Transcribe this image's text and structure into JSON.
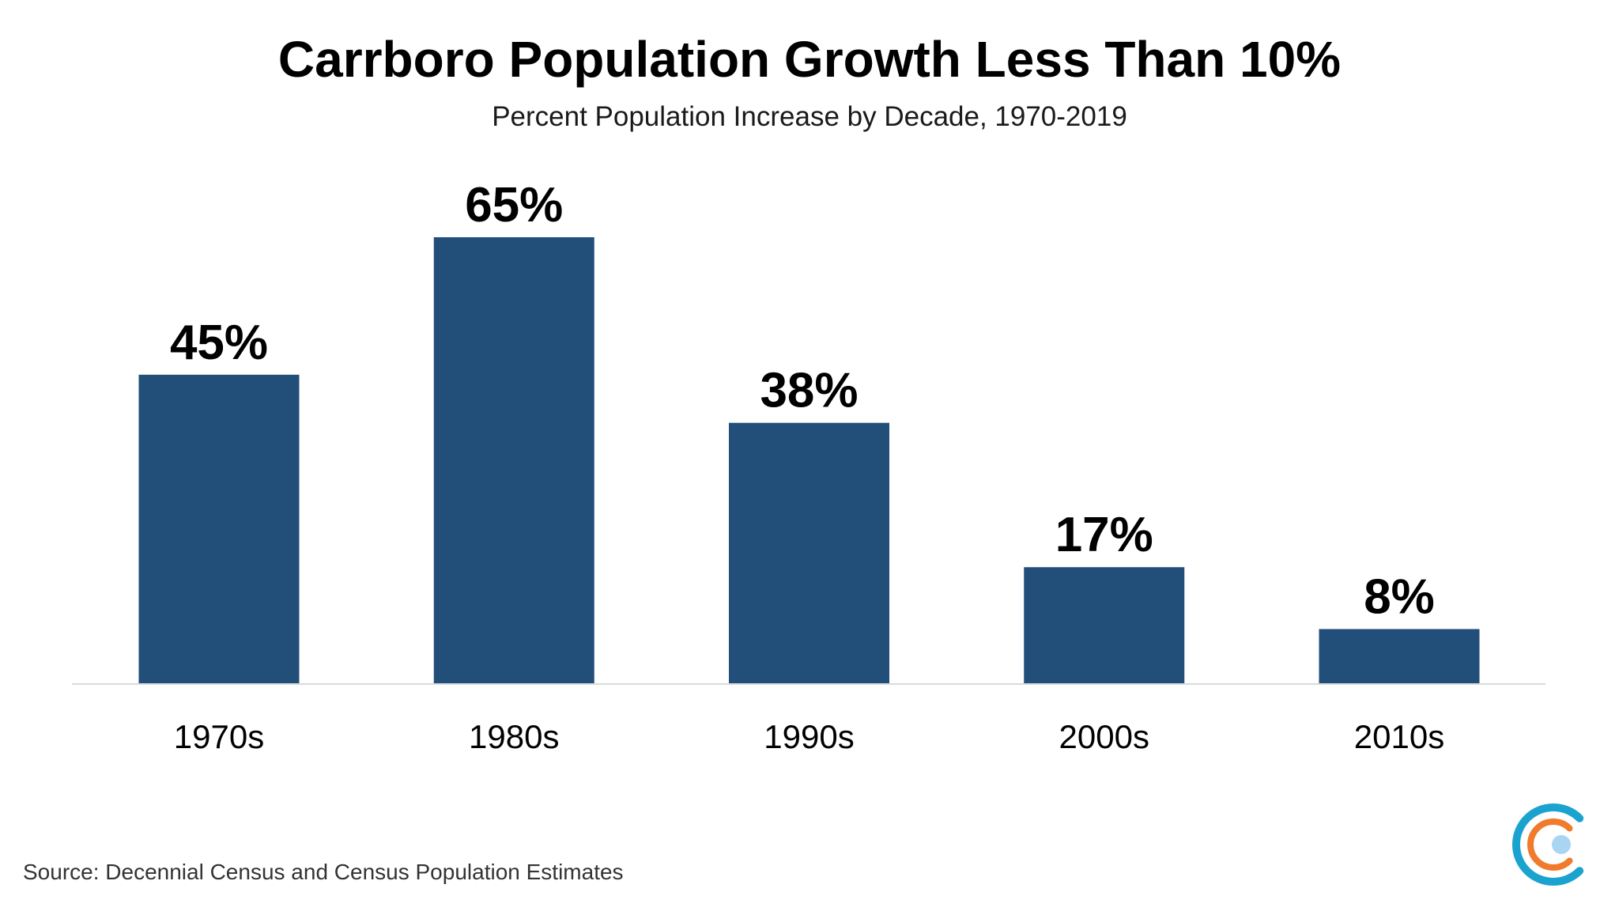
{
  "source": "Source: Decennial Census and Census Population Estimates",
  "colors": {
    "bar": "#224e7a",
    "axis": "#d9d9d9",
    "logo_outer": "#1ba3cf",
    "logo_middle": "#f07b2c",
    "logo_inner": "#a9d5f2"
  },
  "logo": {
    "icon": "concentric-c-logo-icon"
  },
  "chart_data": {
    "type": "bar",
    "title": "Carrboro Population Growth Less Than 10%",
    "subtitle": "Percent Population Increase by Decade, 1970-2019",
    "categories": [
      "1970s",
      "1980s",
      "1990s",
      "2000s",
      "2010s"
    ],
    "values": [
      45,
      65,
      38,
      17,
      8
    ],
    "data_labels": [
      "45%",
      "65%",
      "38%",
      "17%",
      "8%"
    ],
    "xlabel": "",
    "ylabel": "",
    "ylim": [
      0,
      65
    ],
    "grid": false,
    "legend": "none",
    "y_axis_visible": false
  }
}
